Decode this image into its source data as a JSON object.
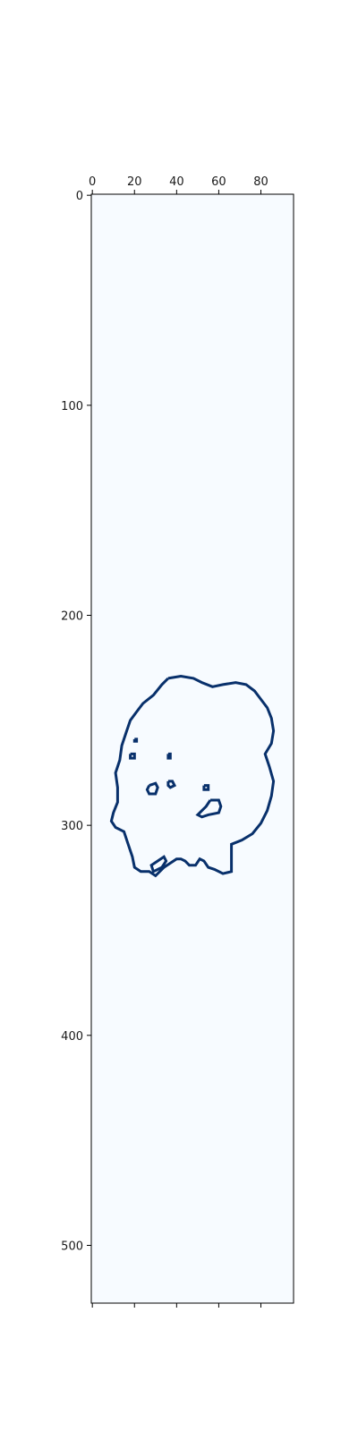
{
  "chart_data": {
    "type": "heatmap",
    "title": "",
    "xlabel": "",
    "ylabel": "",
    "xlim": [
      -0.5,
      95.5
    ],
    "ylim": [
      527.5,
      -0.5
    ],
    "x_ticks": [
      0,
      20,
      40,
      60,
      80
    ],
    "y_ticks": [
      0,
      100,
      200,
      300,
      400,
      500
    ],
    "x_ticks_position": "top",
    "grid": false,
    "legend": "none",
    "colormap": "Blues",
    "colors": {
      "background": "#f7fbff",
      "contour": "#08306b"
    },
    "contours": [
      {
        "name": "outer-outline",
        "points": [
          [
            36,
            230
          ],
          [
            42,
            229
          ],
          [
            48,
            230
          ],
          [
            52,
            232
          ],
          [
            57,
            234
          ],
          [
            62,
            233
          ],
          [
            68,
            232
          ],
          [
            73,
            233
          ],
          [
            77,
            236
          ],
          [
            80,
            240
          ],
          [
            83,
            244
          ],
          [
            85,
            249
          ],
          [
            86,
            255
          ],
          [
            85,
            261
          ],
          [
            82,
            266
          ],
          [
            84,
            272
          ],
          [
            86,
            279
          ],
          [
            85,
            286
          ],
          [
            83,
            293
          ],
          [
            80,
            299
          ],
          [
            76,
            304
          ],
          [
            71,
            307
          ],
          [
            66,
            309
          ],
          [
            66,
            316
          ],
          [
            66,
            322
          ],
          [
            62,
            323
          ],
          [
            58,
            321
          ],
          [
            55,
            320
          ],
          [
            53,
            317
          ],
          [
            51,
            316
          ],
          [
            49,
            319
          ],
          [
            46,
            319
          ],
          [
            44,
            317
          ],
          [
            42,
            316
          ],
          [
            40,
            316
          ],
          [
            37,
            318
          ],
          [
            34,
            320
          ],
          [
            30,
            324
          ],
          [
            27,
            322
          ],
          [
            23,
            322
          ],
          [
            20,
            320
          ],
          [
            19,
            315
          ],
          [
            17,
            309
          ],
          [
            15,
            303
          ],
          [
            11,
            301
          ],
          [
            9,
            298
          ],
          [
            10,
            294
          ],
          [
            12,
            289
          ],
          [
            12,
            282
          ],
          [
            11,
            275
          ],
          [
            13,
            269
          ],
          [
            14,
            262
          ],
          [
            16,
            256
          ],
          [
            18,
            250
          ],
          [
            21,
            246
          ],
          [
            24,
            242
          ],
          [
            29,
            238
          ],
          [
            33,
            233
          ],
          [
            36,
            230
          ]
        ]
      },
      {
        "name": "feature-1",
        "points": [
          [
            27,
            281
          ],
          [
            30,
            280
          ],
          [
            31,
            282
          ],
          [
            30,
            285
          ],
          [
            27,
            285
          ],
          [
            26,
            283
          ],
          [
            27,
            281
          ]
        ]
      },
      {
        "name": "feature-2",
        "points": [
          [
            36,
            279
          ],
          [
            38,
            279
          ],
          [
            39,
            281
          ],
          [
            37,
            282
          ],
          [
            36,
            281
          ],
          [
            36,
            279
          ]
        ]
      },
      {
        "name": "feature-3",
        "points": [
          [
            53,
            281
          ],
          [
            55,
            281
          ],
          [
            55,
            283
          ],
          [
            53,
            283
          ],
          [
            53,
            281
          ]
        ]
      },
      {
        "name": "feature-4",
        "points": [
          [
            56,
            288
          ],
          [
            60,
            288
          ],
          [
            61,
            291
          ],
          [
            60,
            294
          ],
          [
            55,
            295
          ],
          [
            52,
            296
          ],
          [
            50,
            295
          ],
          [
            52,
            293
          ],
          [
            54,
            291
          ],
          [
            56,
            288
          ]
        ]
      },
      {
        "name": "feature-5",
        "points": [
          [
            31,
            317
          ],
          [
            34,
            315
          ],
          [
            35,
            317
          ],
          [
            33,
            320
          ],
          [
            29,
            322
          ],
          [
            28,
            319
          ],
          [
            31,
            317
          ]
        ]
      },
      {
        "name": "feature-6",
        "points": [
          [
            36,
            266
          ],
          [
            37,
            266
          ],
          [
            37,
            268
          ],
          [
            36,
            268
          ],
          [
            36,
            266
          ]
        ]
      },
      {
        "name": "feature-7",
        "points": [
          [
            18,
            266
          ],
          [
            20,
            266
          ],
          [
            20,
            268
          ],
          [
            18,
            268
          ],
          [
            18,
            266
          ]
        ]
      },
      {
        "name": "feature-8",
        "points": [
          [
            20,
            259
          ],
          [
            21,
            259
          ],
          [
            21,
            260
          ],
          [
            20,
            260
          ],
          [
            20,
            259
          ]
        ]
      }
    ]
  }
}
